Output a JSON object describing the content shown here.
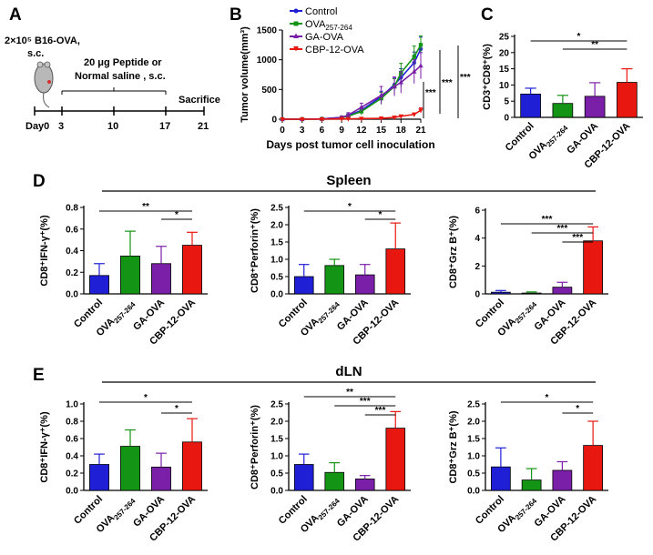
{
  "panel_labels": [
    "A",
    "B",
    "C",
    "D",
    "E"
  ],
  "schematic": {
    "dose": "2×10⁵ B16-OVA,",
    "route": "s.c.",
    "treatment_line1": "20 μg Peptide or",
    "treatment_line2": "Normal saline , s.c.",
    "end_label": "Sacrifice",
    "days": [
      "Day0",
      "3",
      "10",
      "17",
      "21"
    ]
  },
  "section_titles": {
    "spleen": "Spleen",
    "dln": "dLN"
  },
  "colors": {
    "Control": "#1f1fd6",
    "OVA257-264": "#149414",
    "GA-OVA": "#7a1fa8",
    "CBP-12-OVA": "#e8170f"
  },
  "chart_data": [
    {
      "id": "B",
      "type": "line",
      "xlabel": "Days post tumor cell inoculation",
      "ylabel": "Tumor volume(mm³)",
      "x": [
        0,
        3,
        6,
        9,
        10,
        12,
        15,
        17,
        18,
        20,
        21
      ],
      "xticks": [
        0,
        3,
        6,
        9,
        12,
        15,
        18,
        21
      ],
      "yticks": [
        0,
        500,
        1000,
        1500
      ],
      "xlim": [
        0,
        21
      ],
      "ylim": [
        0,
        1500
      ],
      "series": [
        {
          "name": "Control",
          "values": [
            0,
            0,
            5,
            30,
            60,
            150,
            380,
            580,
            700,
            950,
            1180
          ],
          "errors": [
            0,
            0,
            5,
            20,
            30,
            50,
            90,
            120,
            150,
            180,
            200
          ]
        },
        {
          "name": "OVA257-264",
          "values": [
            0,
            0,
            5,
            25,
            50,
            130,
            350,
            550,
            780,
            1050,
            1250
          ],
          "errors": [
            0,
            0,
            5,
            20,
            30,
            60,
            100,
            130,
            160,
            180,
            150
          ]
        },
        {
          "name": "GA-OVA",
          "values": [
            0,
            0,
            5,
            30,
            70,
            200,
            400,
            550,
            620,
            800,
            900
          ],
          "errors": [
            0,
            0,
            5,
            20,
            40,
            70,
            150,
            160,
            180,
            200,
            220
          ]
        },
        {
          "name": "CBP-12-OVA",
          "values": [
            0,
            0,
            0,
            5,
            5,
            10,
            15,
            30,
            50,
            80,
            150
          ],
          "errors": [
            0,
            0,
            0,
            2,
            3,
            5,
            8,
            10,
            15,
            25,
            40
          ]
        }
      ],
      "annotations": [
        "***",
        "***",
        "***"
      ]
    },
    {
      "id": "C",
      "type": "bar",
      "ylabel": "CD3⁺CD8⁺(%)",
      "categories": [
        "Control",
        "OVA257-264",
        "GA-OVA",
        "CBP-12-OVA"
      ],
      "values": [
        7.2,
        4.3,
        6.5,
        10.8
      ],
      "errors": [
        1.8,
        2.5,
        4.2,
        4.2
      ],
      "ylim": [
        0,
        25
      ],
      "yticks": [
        0,
        5,
        10,
        15,
        20,
        25
      ],
      "sig": [
        {
          "from": 0,
          "to": 3,
          "label": "*"
        },
        {
          "from": 1,
          "to": 3,
          "label": "**"
        }
      ]
    },
    {
      "id": "D1",
      "type": "bar",
      "ylabel": "CD8⁺IFN-γ⁺(%)",
      "categories": [
        "Control",
        "OVA257-264",
        "GA-OVA",
        "CBP-12-OVA"
      ],
      "values": [
        0.17,
        0.35,
        0.28,
        0.45
      ],
      "errors": [
        0.11,
        0.23,
        0.16,
        0.12
      ],
      "ylim": [
        0,
        0.8
      ],
      "yticks": [
        "0.0",
        "0.2",
        "0.4",
        "0.6",
        "0.8"
      ],
      "sig": [
        {
          "from": 0,
          "to": 3,
          "label": "**"
        },
        {
          "from": 2,
          "to": 3,
          "label": "*"
        }
      ]
    },
    {
      "id": "D2",
      "type": "bar",
      "ylabel": "CD8⁺Perforin⁺(%)",
      "categories": [
        "Control",
        "OVA257-264",
        "GA-OVA",
        "CBP-12-OVA"
      ],
      "values": [
        0.5,
        0.82,
        0.55,
        1.3
      ],
      "errors": [
        0.35,
        0.18,
        0.3,
        0.75
      ],
      "ylim": [
        0,
        2.5
      ],
      "yticks": [
        "0.0",
        "0.5",
        "1.0",
        "1.5",
        "2.0",
        "2.5"
      ],
      "sig": [
        {
          "from": 0,
          "to": 3,
          "label": "*"
        },
        {
          "from": 2,
          "to": 3,
          "label": "*"
        }
      ]
    },
    {
      "id": "D3",
      "type": "bar",
      "ylabel": "CD8⁺Grz B⁺(%)",
      "categories": [
        "Control",
        "OVA257-264",
        "GA-OVA",
        "CBP-12-OVA"
      ],
      "values": [
        0.12,
        0.06,
        0.48,
        3.8
      ],
      "errors": [
        0.12,
        0.08,
        0.35,
        1.0
      ],
      "ylim": [
        0,
        6
      ],
      "yticks": [
        "0",
        "2",
        "4",
        "6"
      ],
      "sig": [
        {
          "from": 0,
          "to": 3,
          "label": "***"
        },
        {
          "from": 1,
          "to": 3,
          "label": "***"
        },
        {
          "from": 2,
          "to": 3,
          "label": "***"
        }
      ]
    },
    {
      "id": "E1",
      "type": "bar",
      "ylabel": "CD8⁺IFN-γ⁺(%)",
      "categories": [
        "Control",
        "OVA257-264",
        "GA-OVA",
        "CBP-12-OVA"
      ],
      "values": [
        0.3,
        0.51,
        0.27,
        0.56
      ],
      "errors": [
        0.12,
        0.19,
        0.16,
        0.27
      ],
      "ylim": [
        0,
        1.0
      ],
      "yticks": [
        "0.0",
        "0.2",
        "0.4",
        "0.6",
        "0.8",
        "1.0"
      ],
      "sig": [
        {
          "from": 0,
          "to": 3,
          "label": "*"
        },
        {
          "from": 2,
          "to": 3,
          "label": "*"
        }
      ]
    },
    {
      "id": "E2",
      "type": "bar",
      "ylabel": "CD8⁺Perforin⁺(%)",
      "categories": [
        "Control",
        "OVA257-264",
        "GA-OVA",
        "CBP-12-OVA"
      ],
      "values": [
        0.75,
        0.52,
        0.33,
        1.8
      ],
      "errors": [
        0.3,
        0.28,
        0.1,
        0.48
      ],
      "ylim": [
        0,
        2.5
      ],
      "yticks": [
        "0.0",
        "0.5",
        "1.0",
        "1.5",
        "2.0",
        "2.5"
      ],
      "sig": [
        {
          "from": 0,
          "to": 3,
          "label": "**"
        },
        {
          "from": 1,
          "to": 3,
          "label": "***"
        },
        {
          "from": 2,
          "to": 3,
          "label": "***"
        }
      ]
    },
    {
      "id": "E3",
      "type": "bar",
      "ylabel": "CD8⁺Grz B⁺(%)",
      "categories": [
        "Control",
        "OVA257-264",
        "GA-OVA",
        "CBP-12-OVA"
      ],
      "values": [
        0.68,
        0.3,
        0.58,
        1.3
      ],
      "errors": [
        0.55,
        0.33,
        0.25,
        0.7
      ],
      "ylim": [
        0,
        2.5
      ],
      "yticks": [
        "0.0",
        "0.5",
        "1.0",
        "1.5",
        "2.0",
        "2.5"
      ],
      "sig": [
        {
          "from": 0,
          "to": 3,
          "label": "*"
        },
        {
          "from": 2,
          "to": 3,
          "label": "*"
        }
      ]
    }
  ]
}
